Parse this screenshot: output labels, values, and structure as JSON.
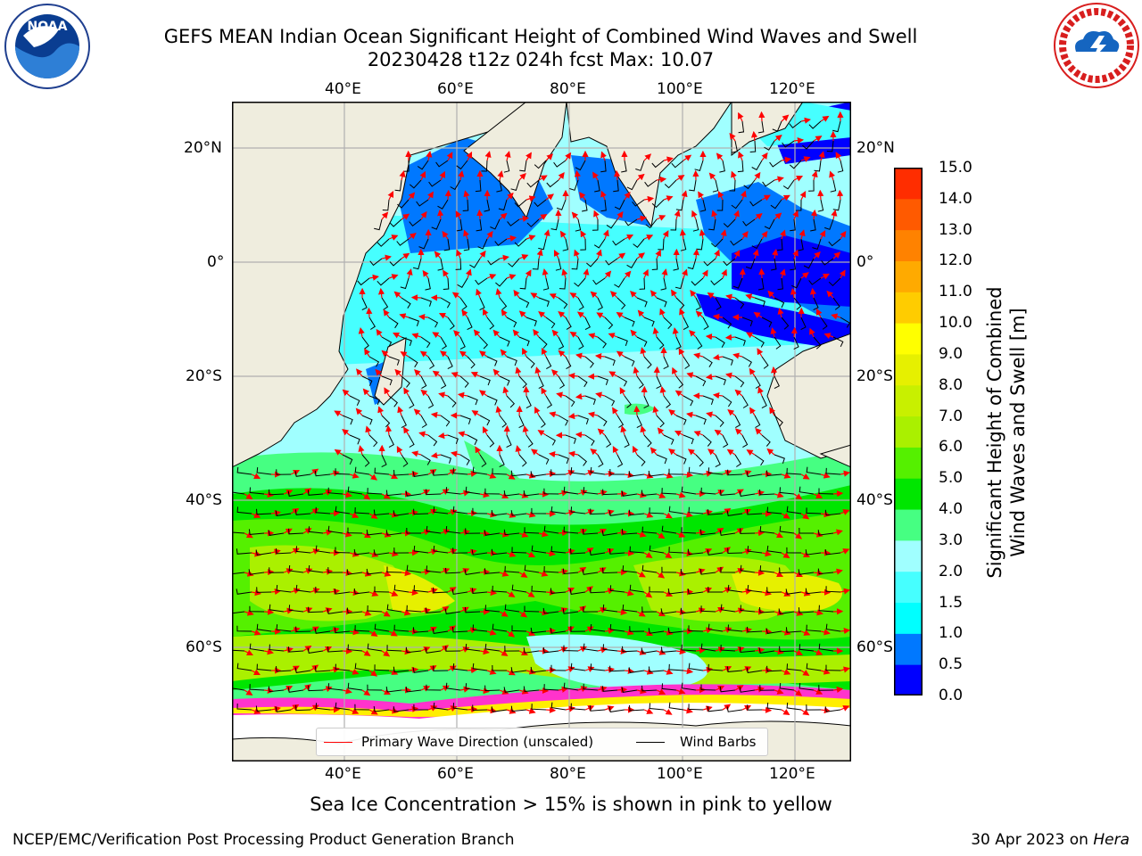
{
  "title": {
    "line1": "GEFS MEAN Indian Ocean Significant Height of Combined Wind Waves and Swell",
    "line2": "20230428 t12z 024h fcst   Max: 10.07"
  },
  "logos": {
    "noara": {
      "icon": "noaa-logo-icon",
      "text": "NOAA",
      "ring_text": "NATIONAL OCEANIC AND ATMOSPHERIC ADMINISTRATION · U.S. DEPARTMENT OF COMMERCE"
    },
    "nws": {
      "icon": "nws-logo-icon",
      "ring_text": "NATIONAL WEATHER SERVICE"
    }
  },
  "map": {
    "lon_ticks": [
      "40°E",
      "60°E",
      "80°E",
      "100°E",
      "120°E"
    ],
    "lat_ticks_left": [
      "20°N",
      "0°",
      "20°S",
      "40°S",
      "60°S"
    ],
    "lat_ticks_right": [
      "20°N",
      "0°",
      "20°S",
      "40°S",
      "60°S"
    ],
    "land_color": "#efedde",
    "ice_color": "#ffffff"
  },
  "colorbar": {
    "label_line1": "Significant Height of Combined",
    "label_line2": "Wind Waves and Swell [m]",
    "ticks": [
      "0.0",
      "0.5",
      "1.0",
      "1.5",
      "2.0",
      "3.0",
      "4.0",
      "5.0",
      "6.0",
      "7.0",
      "8.0",
      "9.0",
      "10.0",
      "11.0",
      "12.0",
      "13.0",
      "14.0",
      "15.0"
    ],
    "colors": [
      "#0000ff",
      "#0078ff",
      "#00ffff",
      "#46ffff",
      "#a0ffff",
      "#46ff82",
      "#00e600",
      "#55f000",
      "#aaf000",
      "#c8f000",
      "#e6f000",
      "#ffff00",
      "#ffcc00",
      "#ffaa00",
      "#ff8200",
      "#ff5a00",
      "#ff2d00"
    ]
  },
  "legend": {
    "wave_label": "Primary Wave Direction (unscaled)",
    "wave_color": "#ff0000",
    "barb_label": "Wind Barbs",
    "barb_color": "#000000"
  },
  "note": "Sea Ice Concentration > 15% is shown in pink to yellow",
  "footer": {
    "left": "NCEP/EMC/Verification Post Processing Product Generation Branch",
    "date": "30 Apr 2023 on",
    "host": "Hera"
  }
}
